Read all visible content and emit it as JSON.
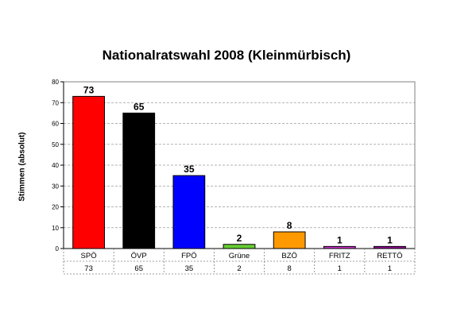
{
  "chart_data": {
    "type": "bar",
    "title": "Nationalratswahl 2008 (Kleinmürbisch)",
    "xlabel": "",
    "ylabel": "Stimmen (absolut)",
    "ylim": [
      0,
      80
    ],
    "yticks": [
      "0",
      "10",
      "20",
      "30",
      "40",
      "50",
      "60",
      "70",
      "80"
    ],
    "grid": true,
    "categories": [
      "SPÖ",
      "ÖVP",
      "FPÖ",
      "Grüne",
      "BZÖ",
      "FRITZ",
      "RETTÖ"
    ],
    "values": [
      73,
      65,
      35,
      2,
      8,
      1,
      1
    ],
    "data_labels": [
      "73",
      "65",
      "35",
      "2",
      "8",
      "1",
      "1"
    ],
    "colors": [
      "#ff0000",
      "#000000",
      "#0000ff",
      "#66cc33",
      "#ff9900",
      "#cc33cc",
      "#990099"
    ],
    "plot_background": "#c0c0c0",
    "table_values": [
      "73",
      "65",
      "35",
      "2",
      "8",
      "1",
      "1"
    ]
  }
}
